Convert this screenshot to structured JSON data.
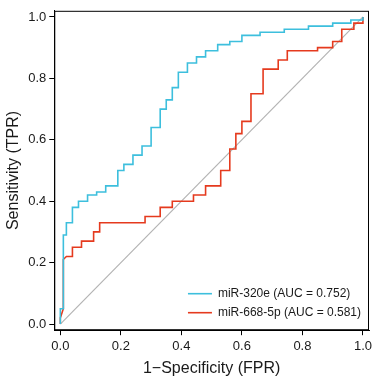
{
  "chart_data": {
    "type": "line",
    "x_label": "1−Specificity (FPR)",
    "y_label": "Sensitivity (TPR)",
    "xlim": [
      -0.02,
      1.02
    ],
    "ylim": [
      -0.02,
      1.02
    ],
    "xticks": [
      {
        "value": 0,
        "label": "0.0"
      },
      {
        "value": 0.2,
        "label": "0.2"
      },
      {
        "value": 0.4,
        "label": "0.4"
      },
      {
        "value": 0.6,
        "label": "0.6"
      },
      {
        "value": 0.8,
        "label": "0.8"
      },
      {
        "value": 1,
        "label": "1.0"
      }
    ],
    "yticks": [
      {
        "value": 0,
        "label": "0.0"
      },
      {
        "value": 0.2,
        "label": "0.2"
      },
      {
        "value": 0.4,
        "label": "0.4"
      },
      {
        "value": 0.6,
        "label": "0.6"
      },
      {
        "value": 0.8,
        "label": "0.8"
      },
      {
        "value": 1,
        "label": "1.0"
      }
    ],
    "grid": false,
    "legend": "lower right",
    "series": [
      {
        "name": "miR-320e (AUC = 0.752)",
        "color": "#3dbfdd",
        "x": [
          0,
          0,
          0.01,
          0.01,
          0.02,
          0.02,
          0.04,
          0.04,
          0.06,
          0.06,
          0.09,
          0.09,
          0.12,
          0.12,
          0.15,
          0.15,
          0.19,
          0.19,
          0.21,
          0.21,
          0.24,
          0.24,
          0.27,
          0.27,
          0.3,
          0.3,
          0.33,
          0.33,
          0.35,
          0.35,
          0.37,
          0.37,
          0.39,
          0.39,
          0.42,
          0.42,
          0.45,
          0.45,
          0.48,
          0.48,
          0.52,
          0.52,
          0.56,
          0.56,
          0.6,
          0.6,
          0.66,
          0.66,
          0.74,
          0.74,
          0.82,
          0.82,
          0.9,
          0.9,
          0.96,
          0.96,
          1.0,
          1.0
        ],
        "values": [
          0,
          0.05,
          0.05,
          0.29,
          0.29,
          0.33,
          0.33,
          0.38,
          0.38,
          0.4,
          0.4,
          0.42,
          0.42,
          0.43,
          0.43,
          0.45,
          0.45,
          0.5,
          0.5,
          0.52,
          0.52,
          0.55,
          0.55,
          0.58,
          0.58,
          0.64,
          0.64,
          0.7,
          0.7,
          0.73,
          0.73,
          0.77,
          0.77,
          0.82,
          0.82,
          0.85,
          0.85,
          0.87,
          0.87,
          0.89,
          0.89,
          0.91,
          0.91,
          0.92,
          0.92,
          0.94,
          0.94,
          0.95,
          0.95,
          0.96,
          0.96,
          0.97,
          0.97,
          0.98,
          0.98,
          0.99,
          0.99,
          1.0
        ]
      },
      {
        "name": "miR-668-5p (AUC = 0.581)",
        "color": "#e53a1e",
        "x": [
          0,
          0,
          0.01,
          0.01,
          0.02,
          0.04,
          0.04,
          0.07,
          0.07,
          0.11,
          0.11,
          0.13,
          0.13,
          0.28,
          0.28,
          0.33,
          0.33,
          0.37,
          0.37,
          0.44,
          0.44,
          0.48,
          0.48,
          0.53,
          0.53,
          0.56,
          0.56,
          0.58,
          0.58,
          0.6,
          0.6,
          0.63,
          0.63,
          0.67,
          0.67,
          0.72,
          0.72,
          0.75,
          0.75,
          0.85,
          0.85,
          0.9,
          0.9,
          0.93,
          0.93,
          0.97,
          0.97,
          1.0,
          1.0
        ],
        "values": [
          0,
          0.02,
          0.05,
          0.21,
          0.22,
          0.22,
          0.25,
          0.25,
          0.27,
          0.27,
          0.3,
          0.3,
          0.33,
          0.33,
          0.35,
          0.35,
          0.38,
          0.38,
          0.4,
          0.4,
          0.42,
          0.42,
          0.45,
          0.45,
          0.5,
          0.5,
          0.57,
          0.57,
          0.62,
          0.62,
          0.66,
          0.66,
          0.75,
          0.75,
          0.83,
          0.83,
          0.86,
          0.86,
          0.89,
          0.89,
          0.9,
          0.9,
          0.92,
          0.92,
          0.96,
          0.96,
          0.98,
          0.98,
          1.0
        ]
      },
      {
        "color": "#b3b3b3",
        "x": [
          0,
          1
        ],
        "values": [
          0,
          1
        ]
      }
    ]
  }
}
